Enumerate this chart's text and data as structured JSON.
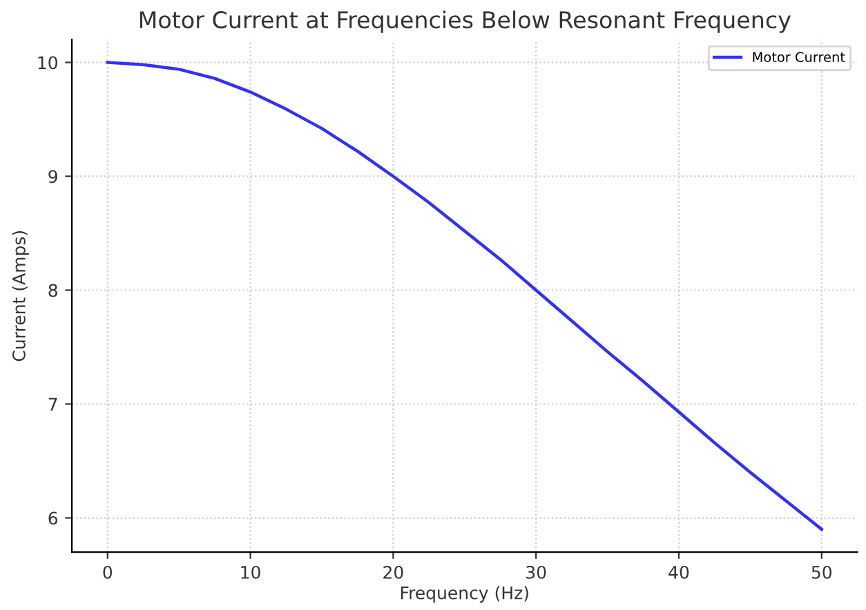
{
  "chart_data": {
    "type": "line",
    "title": "Motor Current at Frequencies Below Resonant Frequency",
    "xlabel": "Frequency (Hz)",
    "ylabel": "Current (Amps)",
    "series": [
      {
        "name": "Motor Current",
        "color": "#3030ff",
        "x": [
          0,
          2.5,
          5,
          7.5,
          10,
          12.5,
          15,
          17.5,
          20,
          22.5,
          25,
          27.5,
          30,
          32.5,
          35,
          37.5,
          40,
          42.5,
          45,
          47.5,
          50
        ],
        "values": [
          10,
          9.98,
          9.94,
          9.86,
          9.74,
          9.59,
          9.42,
          9.22,
          9.0,
          8.77,
          8.52,
          8.27,
          8.0,
          7.73,
          7.46,
          7.2,
          6.93,
          6.66,
          6.4,
          6.15,
          5.9
        ]
      }
    ],
    "xlim": [
      -2.5,
      52.5
    ],
    "ylim": [
      5.7,
      10.2
    ],
    "xticks": [
      0,
      10,
      20,
      30,
      40,
      50
    ],
    "yticks": [
      6,
      7,
      8,
      9,
      10
    ],
    "grid": true,
    "legend": "top right",
    "line_style": "solid",
    "marker": "none"
  }
}
